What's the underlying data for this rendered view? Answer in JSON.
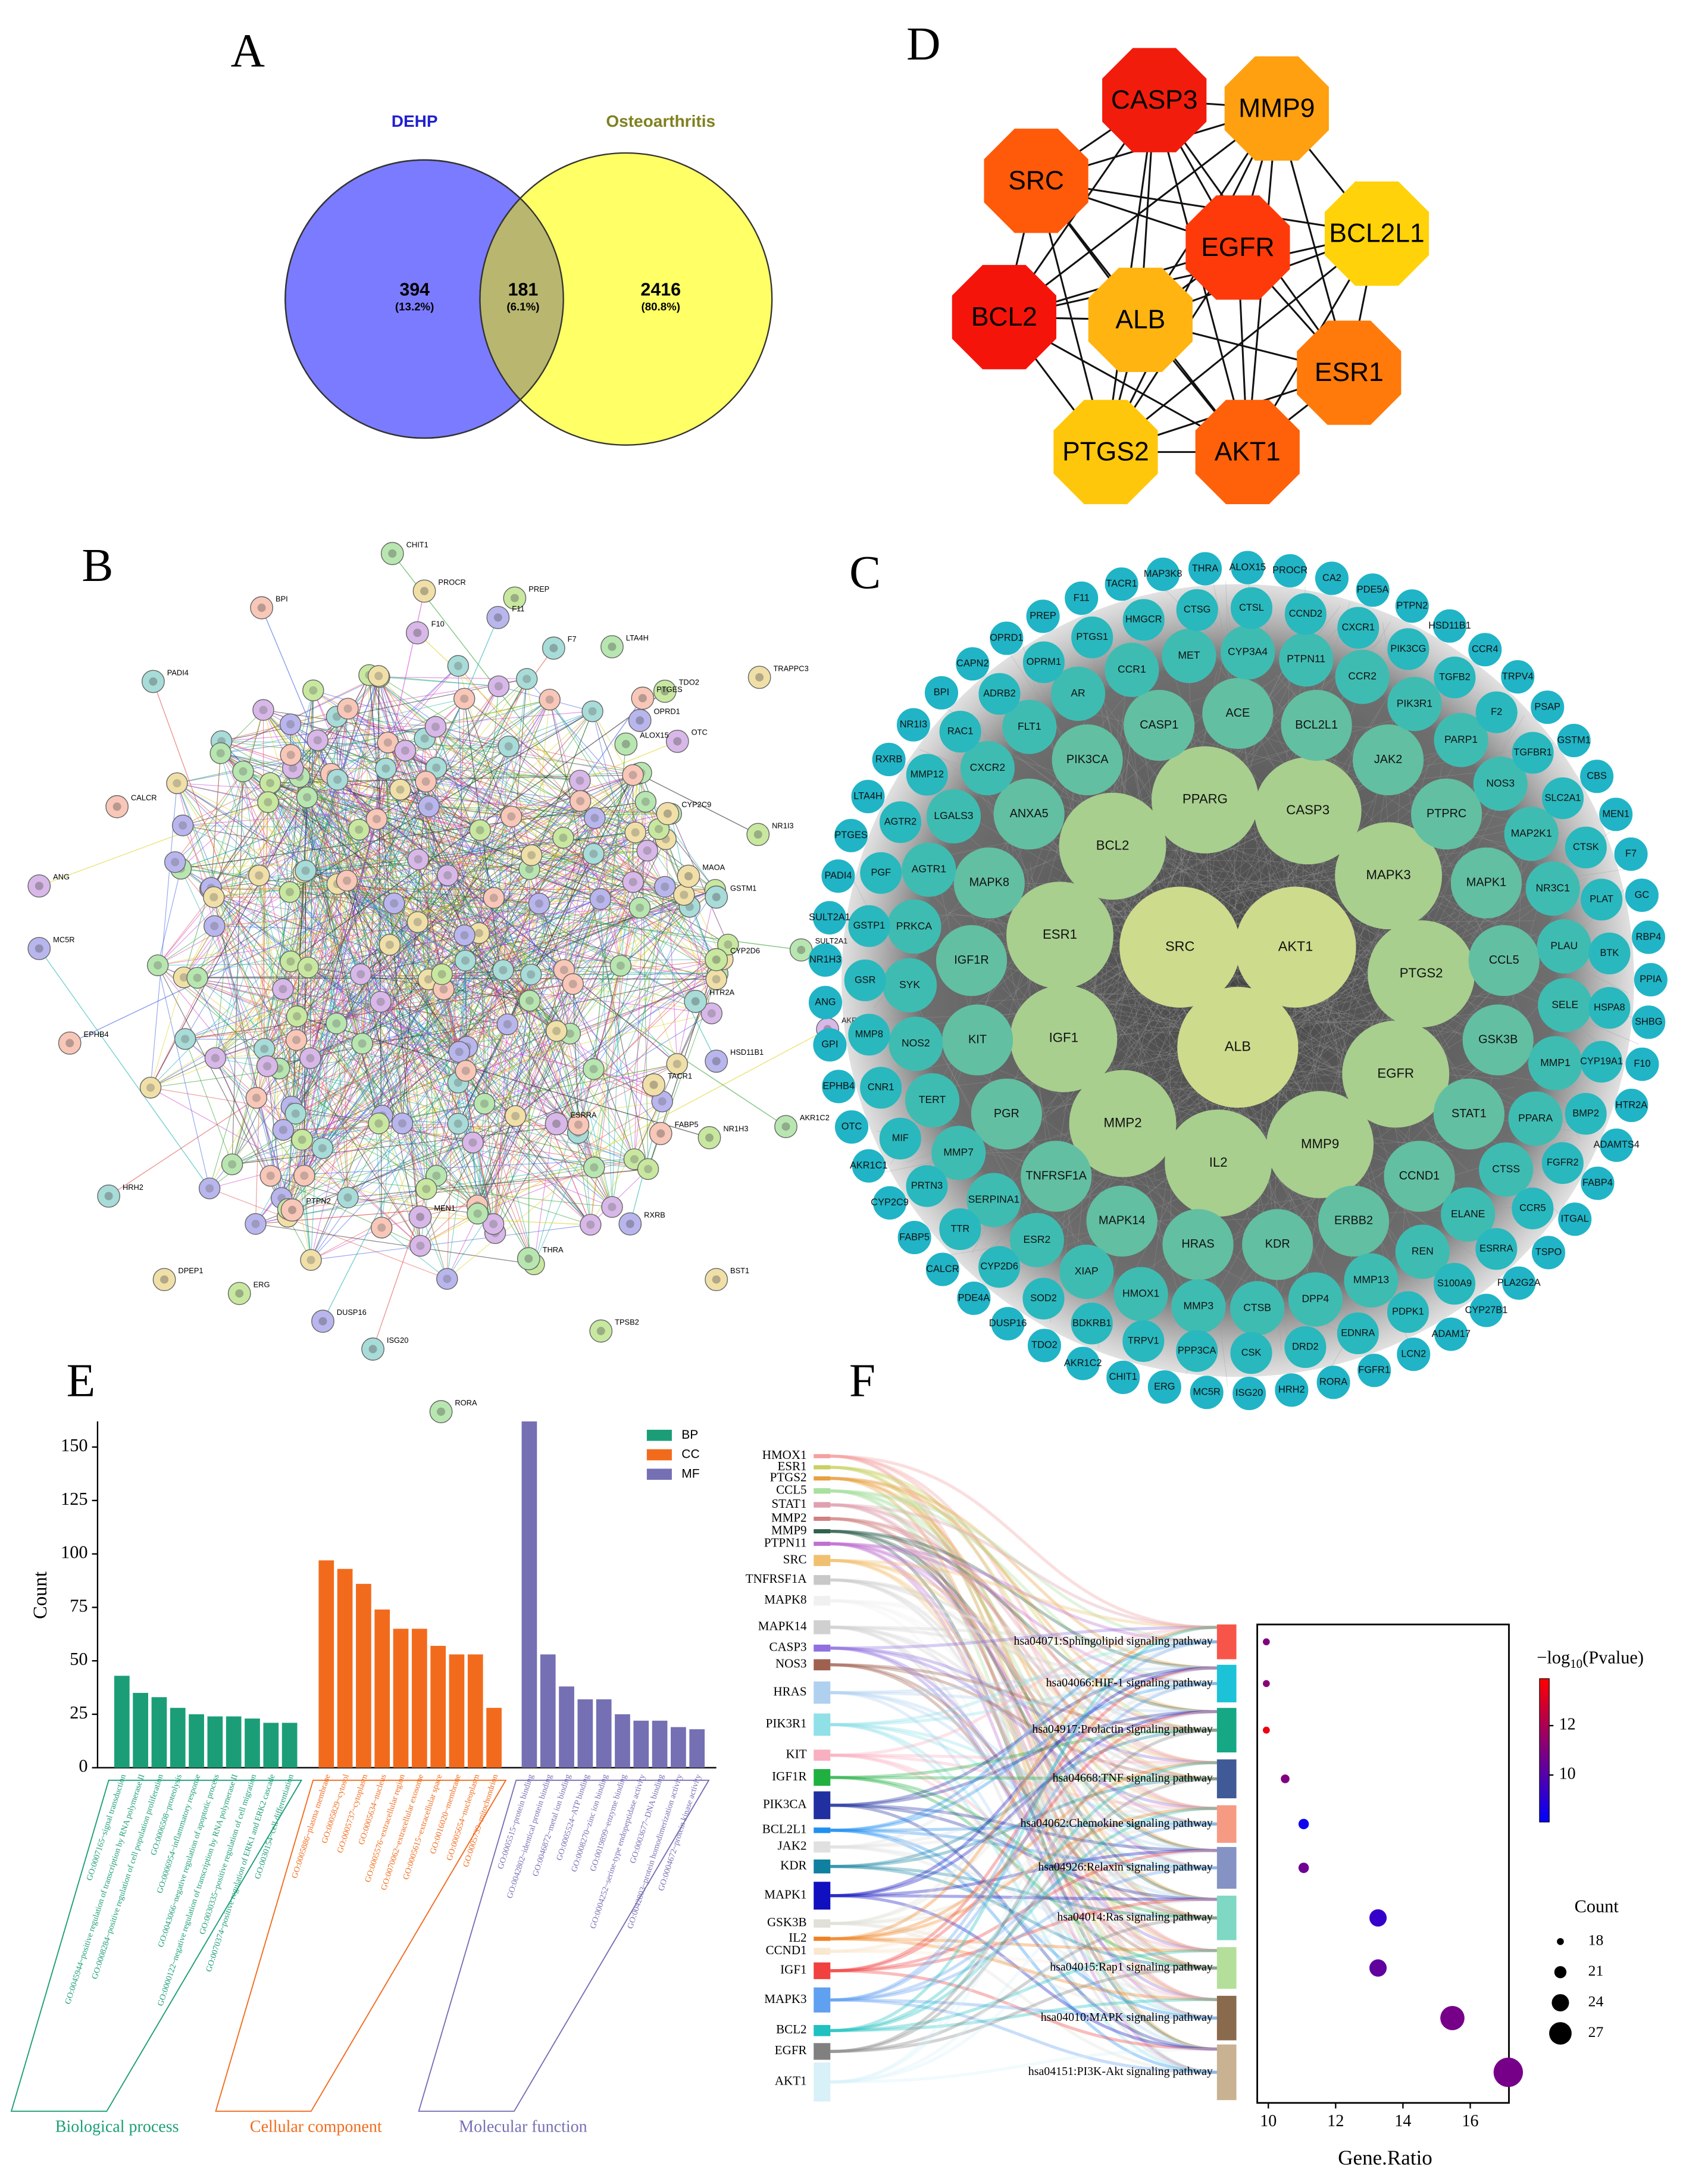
{
  "panel_labels": [
    "A",
    "B",
    "C",
    "D",
    "E",
    "F"
  ],
  "venn": {
    "sets": [
      {
        "name": "DEHP",
        "color": "#7b7bff",
        "label_color": "#2020d0"
      },
      {
        "name": "Osteoarthritis",
        "color": "#ffff66",
        "label_color": "#808020"
      }
    ],
    "overlap_color": "#b9b66f",
    "regions": [
      {
        "count": 394,
        "percent": "(13.2%)"
      },
      {
        "count": 181,
        "percent": "(6.1%)"
      },
      {
        "count": 2416,
        "percent": "(80.8%)"
      }
    ]
  },
  "hub_network": {
    "nodes": [
      {
        "label": "CASP3",
        "color": "#f21c0c"
      },
      {
        "label": "MMP9",
        "color": "#ffa010"
      },
      {
        "label": "SRC",
        "color": "#ff5a0a"
      },
      {
        "label": "EGFR",
        "color": "#ff3a0a"
      },
      {
        "label": "BCL2L1",
        "color": "#ffd20a"
      },
      {
        "label": "BCL2",
        "color": "#f5140a"
      },
      {
        "label": "ALB",
        "color": "#ffb412"
      },
      {
        "label": "ESR1",
        "color": "#ff7a0a"
      },
      {
        "label": "PTGS2",
        "color": "#ffc70c"
      },
      {
        "label": "AKT1",
        "color": "#ff600a"
      }
    ]
  },
  "string_network": {
    "labels": [
      "CHIT1",
      "PROCR",
      "PREP",
      "BPI",
      "F10",
      "F11",
      "F7",
      "LTA4H",
      "TRAPPC3",
      "TDO2",
      "PTGES",
      "OTC",
      "OPRD1",
      "PADI4",
      "ALOX15",
      "CYP2C9",
      "NR1I3",
      "CALCR",
      "ANG",
      "MC5R",
      "GSTM1",
      "SULT2A1",
      "MAOA",
      "CYP2D6",
      "EPHB4",
      "AKR1C1",
      "HSD11B1",
      "HTR2A",
      "AKR1C2",
      "TACR1",
      "NR1H3",
      "FABP5",
      "ESRRA",
      "RXRB",
      "HRH2",
      "THRA",
      "DPEP1",
      "ERG",
      "PTPN2",
      "MEN1",
      "DUSP16",
      "ISG20",
      "RORA",
      "BST1",
      "TPSB2"
    ]
  },
  "degree_network": {
    "rings": [
      {
        "color": "#cddb8c",
        "labels": [
          "AKT1",
          "ALB",
          "SRC"
        ]
      },
      {
        "color": "#a8cf8e",
        "labels": [
          "PPARG",
          "CASP3",
          "MAPK3",
          "PTGS2",
          "EGFR",
          "MMP9",
          "IL2",
          "MMP2",
          "IGF1",
          "ESR1",
          "BCL2"
        ]
      },
      {
        "color": "#62bfa2",
        "labels": [
          "ACE",
          "BCL2L1",
          "JAK2",
          "PTPRC",
          "MAPK1",
          "CCL5",
          "GSK3B",
          "STAT1",
          "CCND1",
          "ERBB2",
          "KDR",
          "HRAS",
          "MAPK14",
          "TNFRSF1A",
          "PGR",
          "KIT",
          "IGF1R",
          "MAPK8",
          "ANXA5",
          "PIK3CA",
          "CASP1"
        ]
      },
      {
        "color": "#3fbcb2",
        "labels": [
          "MET",
          "CYP3A4",
          "PTPN11",
          "CCR2",
          "PIK3R1",
          "PARP1",
          "NOS3",
          "MAP2K1",
          "NR3C1",
          "PLAU",
          "SELE",
          "MMP1",
          "PPARA",
          "CTSS",
          "ELANE",
          "REN",
          "MMP13",
          "DPP4",
          "CTSB",
          "MMP3",
          "HMOX1",
          "XIAP",
          "ESR2",
          "SERPINA1",
          "MMP7",
          "TERT",
          "NOS2",
          "SYK",
          "PRKCA",
          "AGTR1",
          "LGALS3",
          "CXCR2",
          "FLT1",
          "AR",
          "CCR1"
        ]
      },
      {
        "color": "#29b8bd",
        "labels": [
          "CTSG",
          "CTSL",
          "CCND2",
          "CXCR1",
          "PIK3CG",
          "TGFB2",
          "F2",
          "TGFBR1",
          "SLC2A1",
          "CTSK",
          "PLAT",
          "BTK",
          "HSPA8",
          "CYP19A1",
          "BMP2",
          "FGFR2",
          "CCR5",
          "ESRRA",
          "S100A9",
          "PDPK1",
          "EDNRA",
          "DRD2",
          "CSK",
          "PPP3CA",
          "TRPV1",
          "BDKRB1",
          "SOD2",
          "CYP2D6",
          "TTR",
          "PRTN3",
          "MIF",
          "CNR1",
          "MMP8",
          "GSR",
          "GSTP1",
          "PGF",
          "AGTR2",
          "MMP12",
          "RAC1",
          "ADRB2",
          "OPRM1",
          "PTGS1",
          "HMGCR"
        ]
      },
      {
        "color": "#20b4c6",
        "labels": [
          "THRA",
          "ALOX15",
          "PROCR",
          "CA2",
          "PDE5A",
          "PTPN2",
          "HSD11B1",
          "CCR4",
          "TRPV4",
          "PSAP",
          "GSTM1",
          "CBS",
          "MEN1",
          "F7",
          "GC",
          "RBP4",
          "PPIA",
          "SHBG",
          "F10",
          "HTR2A",
          "ADAMTS4",
          "FABP4",
          "ITGAL",
          "TSPO",
          "PLA2G2A",
          "CYP27B1",
          "ADAM17",
          "LCN2",
          "FGFR1",
          "RORA",
          "HRH2",
          "ISG20",
          "MC5R",
          "ERG",
          "CHIT1",
          "AKR1C2",
          "TDO2",
          "DUSP16",
          "PDE4A",
          "CALCR",
          "FABP5",
          "CYP2C9",
          "AKR1C1",
          "OTC",
          "EPHB4",
          "GPI",
          "ANG",
          "NR1H3",
          "SULT2A1",
          "PADI4",
          "PTGES",
          "LTA4H",
          "RXRB",
          "NR1I3",
          "BPI",
          "CAPN2",
          "OPRD1",
          "PREP",
          "F11",
          "TACR1",
          "MAP3K8"
        ]
      }
    ]
  },
  "chart_data": [
    {
      "type": "bar",
      "ylabel": "Count",
      "ylim": [
        0,
        162
      ],
      "yticks": [
        0,
        25,
        50,
        75,
        100,
        125,
        150
      ],
      "groups": [
        {
          "name": "BP",
          "label": "Biological process",
          "color": "#1b9e77",
          "categories": [
            "GO:0007165~signal transduction",
            "GO:0045944~positive regulation of transcription by RNA polymerase II",
            "GO:0008284~positive regulation of cell population proliferation",
            "GO:0006508~proteolysis",
            "GO:0006954~inflammatory response",
            "GO:0043066~negative regulation of apoptotic process",
            "GO:0000122~negative regulation of transcription by RNA polymerase II",
            "GO:0030335~positive regulation of cell migration",
            "GO:0070374~positive regulation of ERK1 and ERK2 cascade",
            "GO:0030154~cell differentiation"
          ],
          "values": [
            43,
            35,
            33,
            28,
            25,
            24,
            24,
            23,
            21,
            21
          ]
        },
        {
          "name": "CC",
          "label": "Cellular component",
          "color": "#f26b1d",
          "categories": [
            "GO:0005886~plasma membrane",
            "GO:0005829~cytosol",
            "GO:0005737~cytoplasm",
            "GO:0005634~nucleus",
            "GO:0005576~extracellular region",
            "GO:0070062~extracellular exosome",
            "GO:0005615~extracellular space",
            "GO:0016020~membrane",
            "GO:0005654~nucleoplasm",
            "GO:0005739~mitochondrion"
          ],
          "values": [
            97,
            93,
            86,
            74,
            65,
            65,
            57,
            53,
            53,
            28
          ]
        },
        {
          "name": "MF",
          "label": "Molecular function",
          "color": "#7570b3",
          "categories": [
            "GO:0005515~protein binding",
            "GO:0042802~identical protein binding",
            "GO:0046872~metal ion binding",
            "GO:0005524~ATP binding",
            "GO:0008270~zinc ion binding",
            "GO:0019899~enzyme binding",
            "GO:0004252~serine-type endopeptidase activity",
            "GO:0003677~DNA binding",
            "GO:0042803~protein homodimerization activity",
            "GO:0004672~protein kinase activity"
          ],
          "values": [
            162,
            53,
            38,
            32,
            32,
            25,
            22,
            22,
            19,
            18
          ]
        }
      ]
    },
    {
      "type": "scatter",
      "xlabel": "Gene.Ratio",
      "categories": [
        "hsa04071:Sphingolipid signaling pathway",
        "hsa04066:HIF-1 signaling pathway",
        "hsa04917:Prolactin signaling pathway",
        "hsa04668:TNF signaling pathway",
        "hsa04062:Chemokine signaling pathway",
        "hsa04926:Relaxin signaling pathway",
        "hsa04014:Ras signaling pathway",
        "hsa04015:Rap1 signaling pathway",
        "hsa04010:MAPK signaling pathway",
        "hsa04151:PI3K-Akt signaling pathway"
      ],
      "category_colors": [
        "#f8554a",
        "#1cc3d8",
        "#16a784",
        "#3f5a96",
        "#f79a84",
        "#8593c4",
        "#7ed8c4",
        "#b4df9a",
        "#8a6a4c",
        "#c9b292"
      ],
      "x": [
        9.94,
        9.94,
        9.94,
        10.5,
        11.05,
        11.05,
        13.26,
        13.26,
        15.47,
        17.13
      ],
      "counts": [
        18,
        18,
        18,
        19,
        20,
        20,
        24,
        24,
        28,
        31
      ],
      "neglog10_pvalue": [
        11,
        11.2,
        13.5,
        11,
        8.5,
        10.6,
        9.3,
        10.3,
        10.8,
        10.8
      ],
      "xlim": [
        9.67,
        17.15
      ],
      "xticks": [
        10,
        12,
        14,
        16
      ],
      "color_title": [
        "−log",
        "10",
        "(Pvalue)"
      ],
      "clim": [
        8.1,
        13.9
      ],
      "cticks": [
        10,
        12
      ],
      "size_title": "Count",
      "size_legend": [
        18,
        21,
        24,
        27
      ]
    }
  ],
  "sankey": {
    "genes": [
      "HMOX1",
      "ESR1",
      "PTGS2",
      "CCL5",
      "STAT1",
      "MMP2",
      "MMP9",
      "PTPN11",
      "SRC",
      "TNFRSF1A",
      "MAPK8",
      "MAPK14",
      "CASP3",
      "NOS3",
      "HRAS",
      "PIK3R1",
      "KIT",
      "IGF1R",
      "PIK3CA",
      "BCL2L1",
      "JAK2",
      "KDR",
      "MAPK1",
      "GSK3B",
      "IL2",
      "CCND1",
      "IGF1",
      "MAPK3",
      "BCL2",
      "EGFR",
      "AKT1"
    ]
  }
}
